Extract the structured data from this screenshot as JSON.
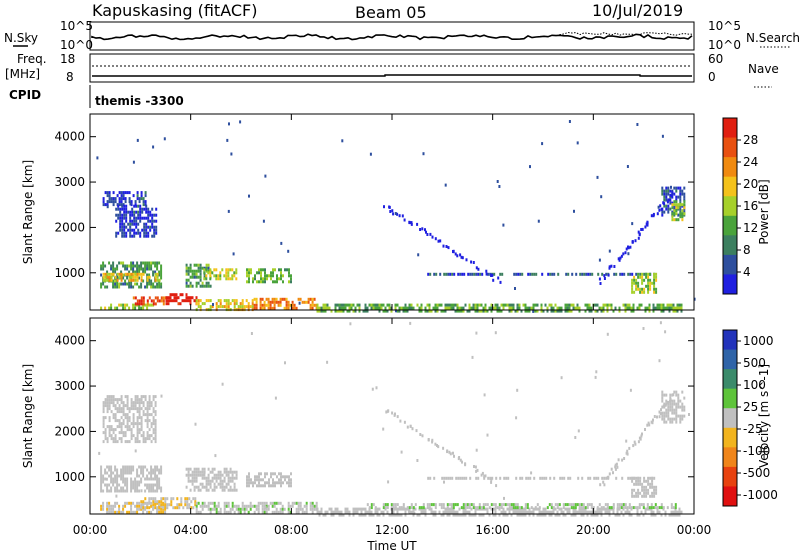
{
  "header": {
    "station": "Kapuskasing (fitACF)",
    "beam": "Beam 05",
    "date": "10/Jul/2019"
  },
  "panels": {
    "noise": {
      "left_label": "N.Sky",
      "right_label": "N.Search",
      "left_ticks": [
        "10^5",
        "10^0"
      ],
      "right_ticks": [
        "10^5",
        "10^0"
      ]
    },
    "freq": {
      "left_label_line1": "Freq.",
      "left_label_line2": "[MHz]",
      "right_label": "Nave",
      "left_ticks": [
        "18",
        "8"
      ],
      "right_ticks": [
        "60",
        "0"
      ]
    },
    "cpid": {
      "label": "CPID",
      "value": "themis -3300"
    }
  },
  "colors": {
    "power": [
      "#1f1fe0",
      "#2e4f9e",
      "#3c7f5f",
      "#4aa33b",
      "#a6d02a",
      "#f4c21b",
      "#f08a10",
      "#e85010",
      "#e01e10"
    ],
    "velocity": [
      "#2233bb",
      "#2f64a8",
      "#3b8b6b",
      "#5ec43a",
      "#c0c0c0",
      "#f2b41e",
      "#f0851a",
      "#e8420f",
      "#e01010"
    ]
  },
  "chart_data": [
    {
      "type": "heatmap",
      "title": "",
      "xlabel": "",
      "ylabel": "Slant Range [km]",
      "xlim": [
        0,
        24
      ],
      "ylim": [
        180,
        4500
      ],
      "yticks": [
        "1000",
        "2000",
        "3000",
        "4000"
      ],
      "colorbar": {
        "label": "Power [dB]",
        "ticks": [
          "4",
          "8",
          "12",
          "16",
          "20",
          "24",
          "28"
        ],
        "range": [
          0,
          30
        ]
      },
      "regions": [
        {
          "x": [
            0.4,
            2.5
          ],
          "y": [
            220,
            320
          ],
          "value": 14
        },
        {
          "x": [
            1.7,
            3.0
          ],
          "y": [
            320,
            480
          ],
          "value": 26
        },
        {
          "x": [
            3.0,
            4.2
          ],
          "y": [
            300,
            550
          ],
          "value": 30
        },
        {
          "x": [
            4.2,
            6.5
          ],
          "y": [
            220,
            420
          ],
          "value": 18
        },
        {
          "x": [
            6.5,
            9.0
          ],
          "y": [
            230,
            450
          ],
          "value": 22
        },
        {
          "x": [
            9.0,
            23.5
          ],
          "y": [
            180,
            320
          ],
          "value": 12
        },
        {
          "x": [
            0.4,
            2.8
          ],
          "y": [
            700,
            1250
          ],
          "value": 10
        },
        {
          "x": [
            0.5,
            2.8
          ],
          "y": [
            850,
            1000
          ],
          "value": 18
        },
        {
          "x": [
            3.8,
            4.8
          ],
          "y": [
            700,
            1200
          ],
          "value": 10
        },
        {
          "x": [
            4.5,
            5.8
          ],
          "y": [
            850,
            1100
          ],
          "value": 16
        },
        {
          "x": [
            6.2,
            8.0
          ],
          "y": [
            800,
            1100
          ],
          "value": 12
        },
        {
          "x": [
            0.5,
            2.2
          ],
          "y": [
            2500,
            2800
          ],
          "value": 3
        },
        {
          "x": [
            1.0,
            2.6
          ],
          "y": [
            1800,
            2500
          ],
          "value": 3
        },
        {
          "x": [
            13.4,
            22.4
          ],
          "y": [
            950,
            1000
          ],
          "value": 6
        },
        {
          "x": [
            21.5,
            22.5
          ],
          "y": [
            600,
            1000
          ],
          "value": 14
        },
        {
          "x": [
            22.7,
            23.6
          ],
          "y": [
            2300,
            2900
          ],
          "value": 4
        },
        {
          "x": [
            23.1,
            23.6
          ],
          "y": [
            2200,
            2600
          ],
          "value": 14
        }
      ],
      "arcs": [
        {
          "x": [
            11.7,
            16.2
          ],
          "y": [
            2500,
            850
          ],
          "value": 3
        },
        {
          "x": [
            20.2,
            23.1
          ],
          "y": [
            800,
            2800
          ],
          "value": 3
        }
      ]
    },
    {
      "type": "heatmap",
      "title": "",
      "xlabel": "Time UT",
      "ylabel": "Slant Range [km]",
      "xlim": [
        0,
        24
      ],
      "ylim": [
        180,
        4500
      ],
      "xticks": [
        "00:00",
        "04:00",
        "08:00",
        "12:00",
        "16:00",
        "20:00",
        "00:00"
      ],
      "yticks": [
        "1000",
        "2000",
        "3000",
        "4000"
      ],
      "colorbar": {
        "label": "Velocity [m s^-1]",
        "ticks": [
          "1000",
          "500",
          "100",
          "25",
          "-25",
          "-100",
          "-500",
          "-1000"
        ],
        "range": [
          -1200,
          1200
        ]
      },
      "regions": [
        {
          "x": [
            0.4,
            3.0
          ],
          "y": [
            220,
            450
          ],
          "value": -80
        },
        {
          "x": [
            2.0,
            4.2
          ],
          "y": [
            350,
            550
          ],
          "value": -120
        },
        {
          "x": [
            4.2,
            9.0
          ],
          "y": [
            220,
            450
          ],
          "value": 60
        },
        {
          "x": [
            9.0,
            23.5
          ],
          "y": [
            180,
            320
          ],
          "value": 10
        },
        {
          "x": [
            11.0,
            23.5
          ],
          "y": [
            320,
            420
          ],
          "value": 80
        },
        {
          "x": [
            0.4,
            2.8
          ],
          "y": [
            700,
            1250
          ],
          "value": 0
        },
        {
          "x": [
            3.8,
            5.8
          ],
          "y": [
            700,
            1200
          ],
          "value": 5
        },
        {
          "x": [
            6.2,
            8.0
          ],
          "y": [
            800,
            1100
          ],
          "value": 0
        },
        {
          "x": [
            0.5,
            2.6
          ],
          "y": [
            1800,
            2800
          ],
          "value": 0
        },
        {
          "x": [
            13.4,
            22.4
          ],
          "y": [
            950,
            1000
          ],
          "value": 0
        },
        {
          "x": [
            21.5,
            22.5
          ],
          "y": [
            600,
            1000
          ],
          "value": 0
        },
        {
          "x": [
            22.7,
            23.6
          ],
          "y": [
            2200,
            2900
          ],
          "value": 0
        }
      ],
      "arcs": [
        {
          "x": [
            11.7,
            16.2
          ],
          "y": [
            2500,
            850
          ],
          "value": 0
        },
        {
          "x": [
            20.2,
            23.1
          ],
          "y": [
            800,
            2800
          ],
          "value": 0
        }
      ]
    }
  ]
}
